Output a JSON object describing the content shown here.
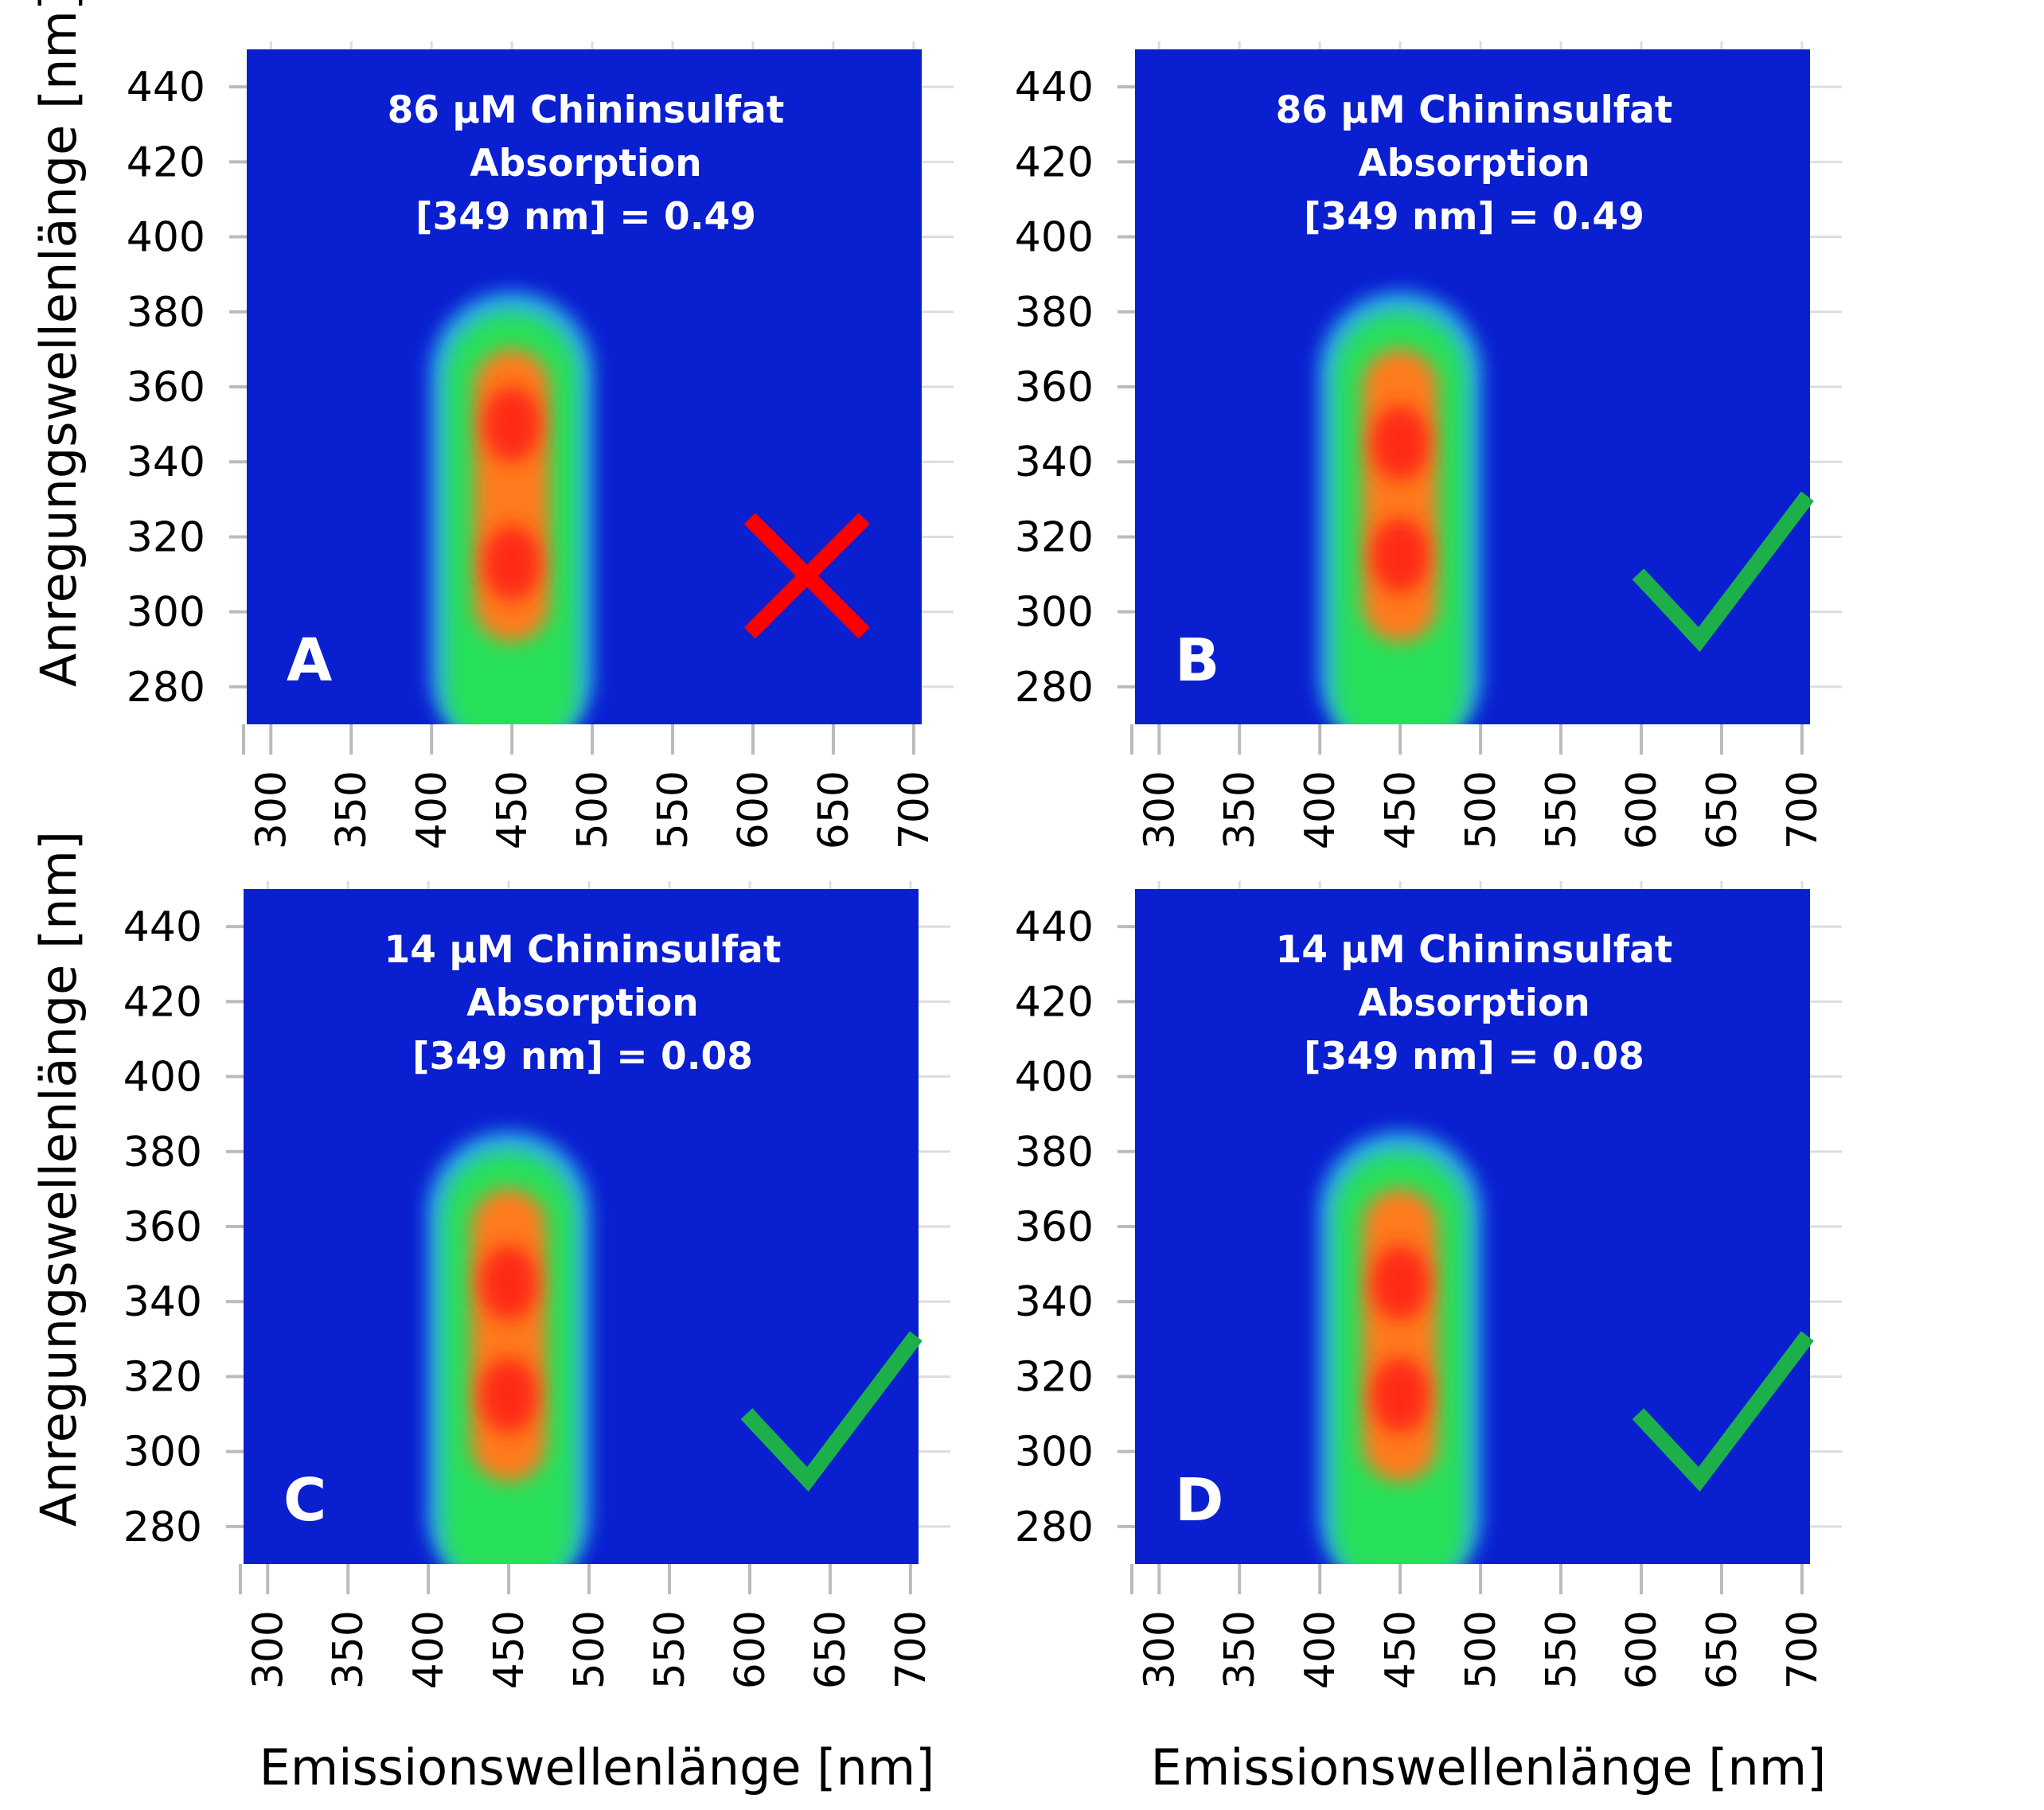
{
  "chart_data": [
    {
      "panel": "A",
      "type": "heatmap",
      "title_lines": [
        "86 µM Chininsulfat",
        "Absorption",
        "[349 nm] = 0.49"
      ],
      "xlabel": "",
      "ylabel": "Anregungswellenlänge [nm]",
      "x_ticks": [
        300,
        350,
        400,
        450,
        500,
        550,
        600,
        650,
        700
      ],
      "y_ticks": [
        280,
        300,
        320,
        340,
        360,
        380,
        400,
        420,
        440
      ],
      "xlim": [
        285,
        705
      ],
      "ylim": [
        270,
        450
      ],
      "peaks": [
        {
          "emission": 450,
          "excitation": 350
        },
        {
          "emission": 450,
          "excitation": 313
        }
      ],
      "emission_extent": [
        415,
        490
      ],
      "excitation_extent": [
        270,
        380
      ],
      "mark": "cross",
      "mark_color": "#ff0000",
      "background_color": "#0a1fd0"
    },
    {
      "panel": "B",
      "type": "heatmap",
      "title_lines": [
        "86 µM Chininsulfat",
        "Absorption",
        "[349 nm] = 0.49"
      ],
      "xlabel": "",
      "ylabel": "",
      "x_ticks": [
        300,
        350,
        400,
        450,
        500,
        550,
        600,
        650,
        700
      ],
      "y_ticks": [
        280,
        300,
        320,
        340,
        360,
        380,
        400,
        420,
        440
      ],
      "xlim": [
        285,
        705
      ],
      "ylim": [
        270,
        450
      ],
      "peaks": [
        {
          "emission": 450,
          "excitation": 345
        },
        {
          "emission": 450,
          "excitation": 315
        }
      ],
      "emission_extent": [
        415,
        490
      ],
      "excitation_extent": [
        270,
        380
      ],
      "mark": "check",
      "mark_color": "#1db04a",
      "background_color": "#0a1fd0"
    },
    {
      "panel": "C",
      "type": "heatmap",
      "title_lines": [
        "14 µM Chininsulfat",
        "Absorption",
        "[349 nm] = 0.08"
      ],
      "xlabel": "Emissionswellenlänge [nm]",
      "ylabel": "Anregungswellenlänge [nm]",
      "x_ticks": [
        300,
        350,
        400,
        450,
        500,
        550,
        600,
        650,
        700
      ],
      "y_ticks": [
        280,
        300,
        320,
        340,
        360,
        380,
        400,
        420,
        440
      ],
      "xlim": [
        285,
        705
      ],
      "ylim": [
        270,
        450
      ],
      "peaks": [
        {
          "emission": 450,
          "excitation": 345
        },
        {
          "emission": 450,
          "excitation": 315
        }
      ],
      "emission_extent": [
        415,
        490
      ],
      "excitation_extent": [
        270,
        380
      ],
      "mark": "check",
      "mark_color": "#1db04a",
      "background_color": "#0a1fd0"
    },
    {
      "panel": "D",
      "type": "heatmap",
      "title_lines": [
        "14 µM Chininsulfat",
        "Absorption",
        "[349 nm] = 0.08"
      ],
      "xlabel": "Emissionswellenlänge [nm]",
      "ylabel": "",
      "x_ticks": [
        300,
        350,
        400,
        450,
        500,
        550,
        600,
        650,
        700
      ],
      "y_ticks": [
        280,
        300,
        320,
        340,
        360,
        380,
        400,
        420,
        440
      ],
      "xlim": [
        285,
        705
      ],
      "ylim": [
        270,
        450
      ],
      "peaks": [
        {
          "emission": 450,
          "excitation": 345
        },
        {
          "emission": 450,
          "excitation": 315
        }
      ],
      "emission_extent": [
        415,
        490
      ],
      "excitation_extent": [
        270,
        380
      ],
      "mark": "check",
      "mark_color": "#1db04a",
      "background_color": "#0a1fd0"
    }
  ]
}
